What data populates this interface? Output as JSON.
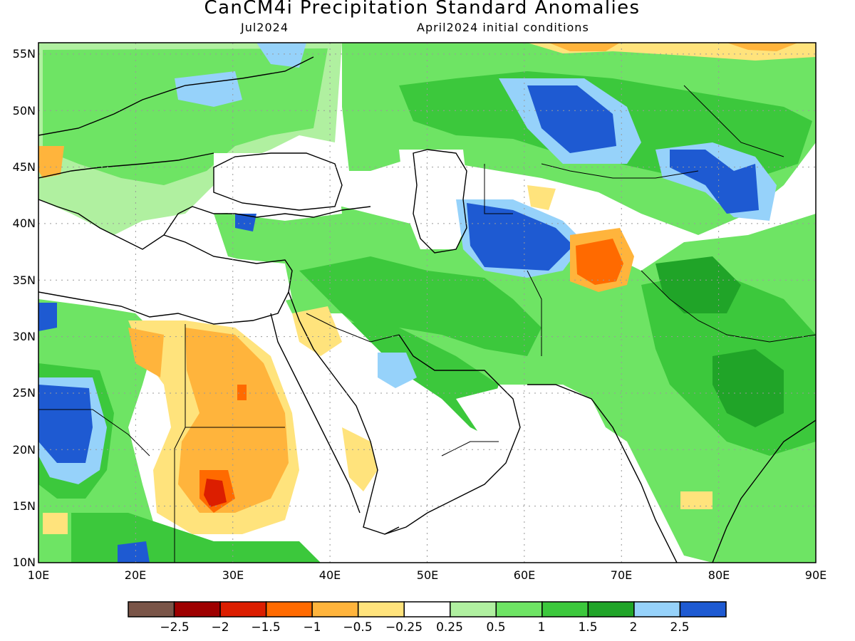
{
  "title": "CanCM4i Precipitation Standard Anomalies",
  "subtitle_left": "Jul2024",
  "subtitle_right": "April2024 initial conditions",
  "map": {
    "lon_range": [
      10,
      90
    ],
    "lat_range": [
      10,
      56
    ],
    "lon_ticks": [
      "10E",
      "20E",
      "30E",
      "40E",
      "50E",
      "60E",
      "70E",
      "80E",
      "90E"
    ],
    "lat_ticks": [
      "55N",
      "50N",
      "45N",
      "40N",
      "35N",
      "30N",
      "25N",
      "20N",
      "15N",
      "10N"
    ],
    "grid": "dotted"
  },
  "colorbar": {
    "colors": [
      "#7a5548",
      "#9e0000",
      "#dc1e00",
      "#ff6a00",
      "#ffb43c",
      "#ffe37c",
      "#ffffff",
      "#b0f0a0",
      "#6ee464",
      "#3cc83c",
      "#20a428",
      "#96d2fa",
      "#1e5ad2"
    ],
    "labels": [
      "−2.5",
      "−2",
      "−1.5",
      "−1",
      "−0.5",
      "−0.25",
      "0.25",
      "0.5",
      "1",
      "1.5",
      "2",
      "2.5"
    ]
  }
}
